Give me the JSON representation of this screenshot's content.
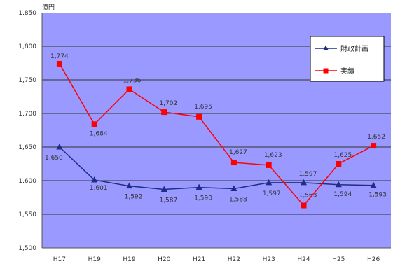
{
  "chart_data": {
    "type": "line",
    "unit_label": "億円",
    "categories": [
      "H17",
      "H19",
      "H19",
      "H20",
      "H21",
      "H22",
      "H23",
      "H24",
      "H25",
      "H26"
    ],
    "ylim": [
      1500,
      1850
    ],
    "yticks": [
      1500,
      1550,
      1600,
      1650,
      1700,
      1750,
      1800,
      1850
    ],
    "ytick_labels": [
      "1,500",
      "1,550",
      "1,600",
      "1,650",
      "1,700",
      "1,750",
      "1,800",
      "1,850"
    ],
    "grid": true,
    "legend_position": "top-right",
    "series": [
      {
        "name": "財政計画",
        "color": "#1f2d86",
        "marker": "triangle",
        "values": [
          1650,
          1601,
          1592,
          1587,
          1590,
          1588,
          1597,
          1597,
          1594,
          1593
        ],
        "labels": [
          "1,650",
          "1,601",
          "1,592",
          "1,587",
          "1,590",
          "1,588",
          "1,597",
          "1,597",
          "1,594",
          "1,593"
        ]
      },
      {
        "name": "実績",
        "color": "#ff0000",
        "marker": "square",
        "values": [
          1774,
          1684,
          1736,
          1702,
          1695,
          1627,
          1623,
          1563,
          1625,
          1652
        ],
        "labels": [
          "1,774",
          "1,684",
          "1,736",
          "1,702",
          "1,695",
          "1,627",
          "1,623",
          "1,563",
          "1,625",
          "1,652"
        ]
      }
    ]
  }
}
